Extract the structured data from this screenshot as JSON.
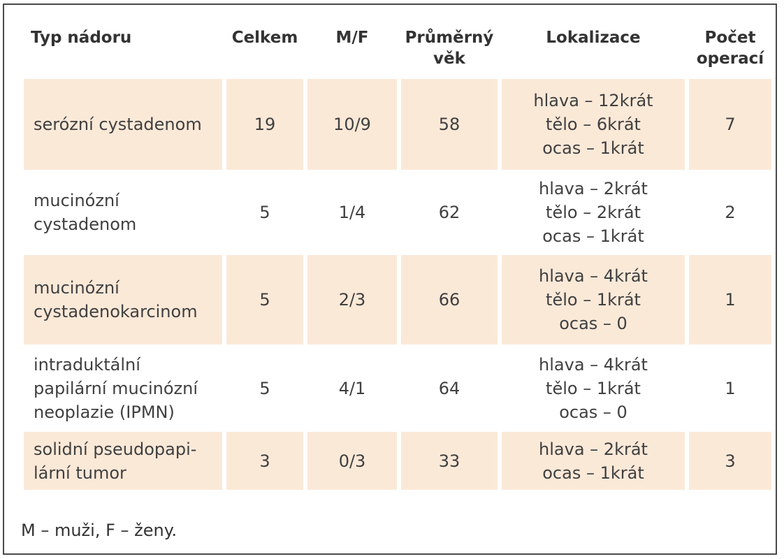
{
  "table": {
    "headers": {
      "type": "Typ nádoru",
      "total": "Celkem",
      "mf": "M/F",
      "age_line1": "Průměrný",
      "age_line2": "věk",
      "location": "Lokalizace",
      "ops_line1": "Počet",
      "ops_line2": "operací"
    },
    "rows": [
      {
        "type_lines": [
          "serózní cystadenom"
        ],
        "total": "19",
        "mf": "10/9",
        "age": "58",
        "location_lines": [
          "hlava – 12krát",
          "tělo – 6krát",
          "ocas – 1krát"
        ],
        "operations": "7"
      },
      {
        "type_lines": [
          "mucinózní",
          "cystadenom"
        ],
        "total": "5",
        "mf": "1/4",
        "age": "62",
        "location_lines": [
          "hlava – 2krát",
          "tělo – 2krát",
          "ocas – 1krát"
        ],
        "operations": "2"
      },
      {
        "type_lines": [
          "mucinózní",
          "cystadenokarcinom"
        ],
        "total": "5",
        "mf": "2/3",
        "age": "66",
        "location_lines": [
          "hlava – 4krát",
          "tělo – 1krát",
          "ocas – 0"
        ],
        "operations": "1"
      },
      {
        "type_lines": [
          "intraduktální",
          "papilární mucinózní",
          "neoplazie (IPMN)"
        ],
        "total": "5",
        "mf": "4/1",
        "age": "64",
        "location_lines": [
          "hlava – 4krát",
          "tělo – 1krát",
          "ocas – 0"
        ],
        "operations": "1"
      },
      {
        "type_lines": [
          "solidní pseudopapi-",
          "lární tumor"
        ],
        "total": "3",
        "mf": "0/3",
        "age": "33",
        "location_lines": [
          "hlava – 2krát",
          "ocas – 1krát"
        ],
        "operations": "3"
      }
    ]
  },
  "footnote": "M – muži, F – ženy."
}
